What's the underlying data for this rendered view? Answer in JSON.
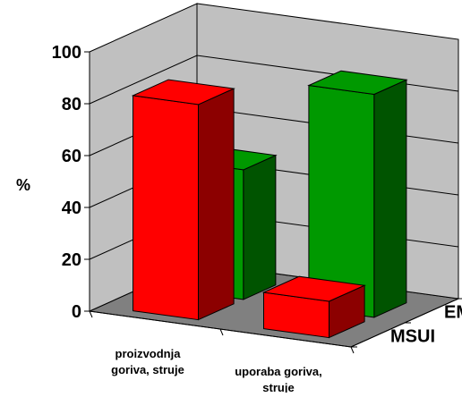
{
  "chart_data": {
    "type": "bar",
    "style": "3d-clustered-depth",
    "ylabel": "%",
    "ylim": [
      0,
      100
    ],
    "yticks": [
      "0",
      "20",
      "40",
      "60",
      "80",
      "100"
    ],
    "grid": true,
    "categories": [
      "proizvodnja goriva, struje",
      "uporaba goriva, struje"
    ],
    "category_lines": [
      [
        "proizvodnja",
        "goriva, struje"
      ],
      [
        "uporaba goriva,",
        "struje"
      ]
    ],
    "series": [
      {
        "name": "MSUI",
        "color": "#ff0000",
        "values": [
          83,
          14
        ]
      },
      {
        "name": "EM",
        "color": "#009900",
        "values": [
          50,
          86
        ]
      }
    ],
    "colors": {
      "wall": "#c0c0c0",
      "floor": "#808080",
      "gridline": "#000000"
    }
  }
}
